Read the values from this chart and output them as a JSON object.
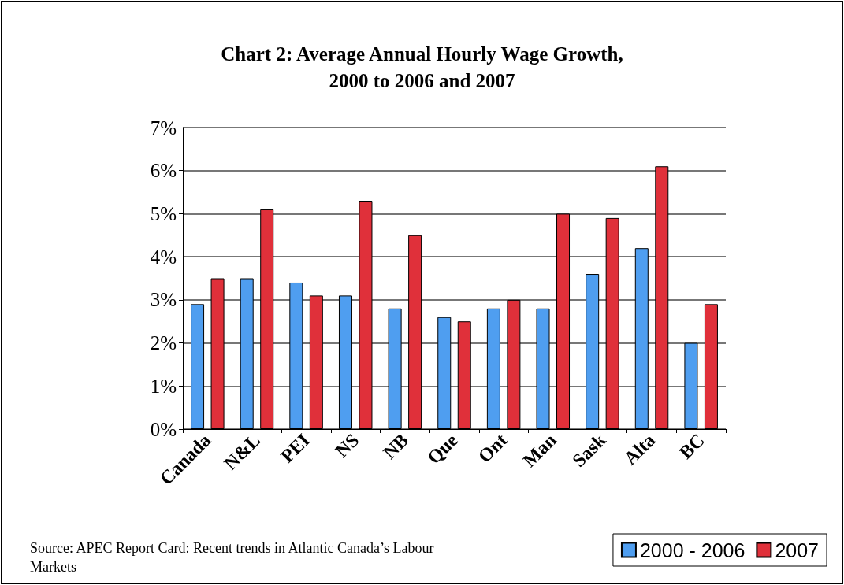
{
  "chart_data": {
    "type": "bar",
    "title": "Chart 2: Average Annual Hourly Wage Growth,\n2000 to 2006 and 2007",
    "categories": [
      "Canada",
      "N&L",
      "PEI",
      "NS",
      "NB",
      "Que",
      "Ont",
      "Man",
      "Sask",
      "Alta",
      "BC"
    ],
    "series": [
      {
        "name": "2000 - 2006",
        "color": "#4f9ef0",
        "values": [
          2.9,
          3.5,
          3.4,
          3.1,
          2.8,
          2.6,
          2.8,
          2.8,
          3.6,
          4.2,
          2.0
        ]
      },
      {
        "name": "2007",
        "color": "#e0303a",
        "values": [
          3.5,
          5.1,
          3.1,
          5.3,
          4.5,
          2.5,
          3.0,
          5.0,
          4.9,
          6.1,
          2.9
        ]
      }
    ],
    "ylim": [
      0,
      7
    ],
    "yticks": [
      {
        "value": 0,
        "label": "0%"
      },
      {
        "value": 1,
        "label": "1%"
      },
      {
        "value": 2,
        "label": "2%"
      },
      {
        "value": 3,
        "label": "3%"
      },
      {
        "value": 4,
        "label": "4%"
      },
      {
        "value": 5,
        "label": "5%"
      },
      {
        "value": 6,
        "label": "6%"
      },
      {
        "value": 7,
        "label": "7%"
      }
    ],
    "grid": "y",
    "legend": "bottom right",
    "annotations": [
      "Source: APEC Report Card: Recent trends in Atlantic Canada’s Labour Markets"
    ]
  }
}
